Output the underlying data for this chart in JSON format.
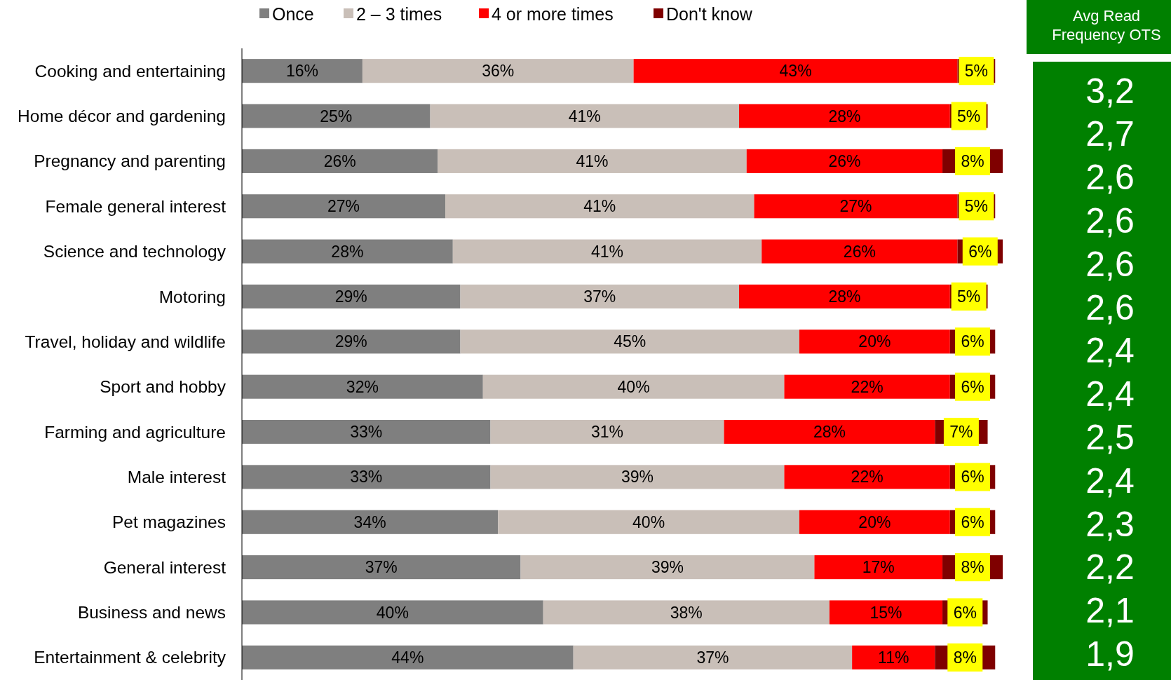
{
  "chart_data": [
    {
      "type": "bar",
      "orientation": "horizontal",
      "stacked": true,
      "legend": "top",
      "categories": [
        "Cooking and entertaining",
        "Home décor and gardening",
        "Pregnancy and parenting",
        "Female general interest",
        "Science and technology",
        "Motoring",
        "Travel, holiday and wildlife",
        "Sport and hobby",
        "Farming and agriculture",
        "Male interest",
        "Pet magazines",
        "General interest",
        "Business and news",
        "Entertainment & celebrity"
      ],
      "series": [
        {
          "name": "Once",
          "color": "#7f7f7f",
          "values": [
            16,
            25,
            26,
            27,
            28,
            29,
            29,
            32,
            33,
            33,
            34,
            37,
            40,
            44
          ],
          "value_labels": [
            "16%",
            "25%",
            "26%",
            "27%",
            "28%",
            "29%",
            "29%",
            "32%",
            "33%",
            "33%",
            "34%",
            "37%",
            "40%",
            "44%"
          ]
        },
        {
          "name": "2 – 3 times",
          "color": "#c9bfb8",
          "values": [
            36,
            41,
            41,
            41,
            41,
            37,
            45,
            40,
            31,
            39,
            40,
            39,
            38,
            37
          ],
          "value_labels": [
            "36%",
            "41%",
            "41%",
            "41%",
            "41%",
            "37%",
            "45%",
            "40%",
            "31%",
            "39%",
            "40%",
            "39%",
            "38%",
            "37%"
          ]
        },
        {
          "name": "4 or more times",
          "color": "#ff0000",
          "values": [
            43,
            28,
            26,
            27,
            26,
            28,
            20,
            22,
            28,
            22,
            20,
            17,
            15,
            11
          ],
          "value_labels": [
            "43%",
            "28%",
            "26%",
            "27%",
            "26%",
            "28%",
            "20%",
            "22%",
            "28%",
            "22%",
            "20%",
            "17%",
            "15%",
            "11%"
          ]
        },
        {
          "name": "Don't know",
          "color": "#7f0000",
          "values": [
            5,
            5,
            8,
            5,
            6,
            5,
            6,
            6,
            7,
            6,
            6,
            8,
            6,
            8
          ],
          "value_labels": [
            "5%",
            "5%",
            "8%",
            "5%",
            "6%",
            "5%",
            "6%",
            "6%",
            "7%",
            "6%",
            "6%",
            "8%",
            "6%",
            "8%"
          ]
        }
      ]
    },
    {
      "type": "other",
      "title": "Avg Read Frequency OTS",
      "annotations": [
        "3,2",
        "2,7",
        "2,6",
        "2,6",
        "2,6",
        "2,6",
        "2,4",
        "2,4",
        "2,5",
        "2,4",
        "2,3",
        "2,2",
        "2,1",
        "1,9"
      ]
    }
  ]
}
